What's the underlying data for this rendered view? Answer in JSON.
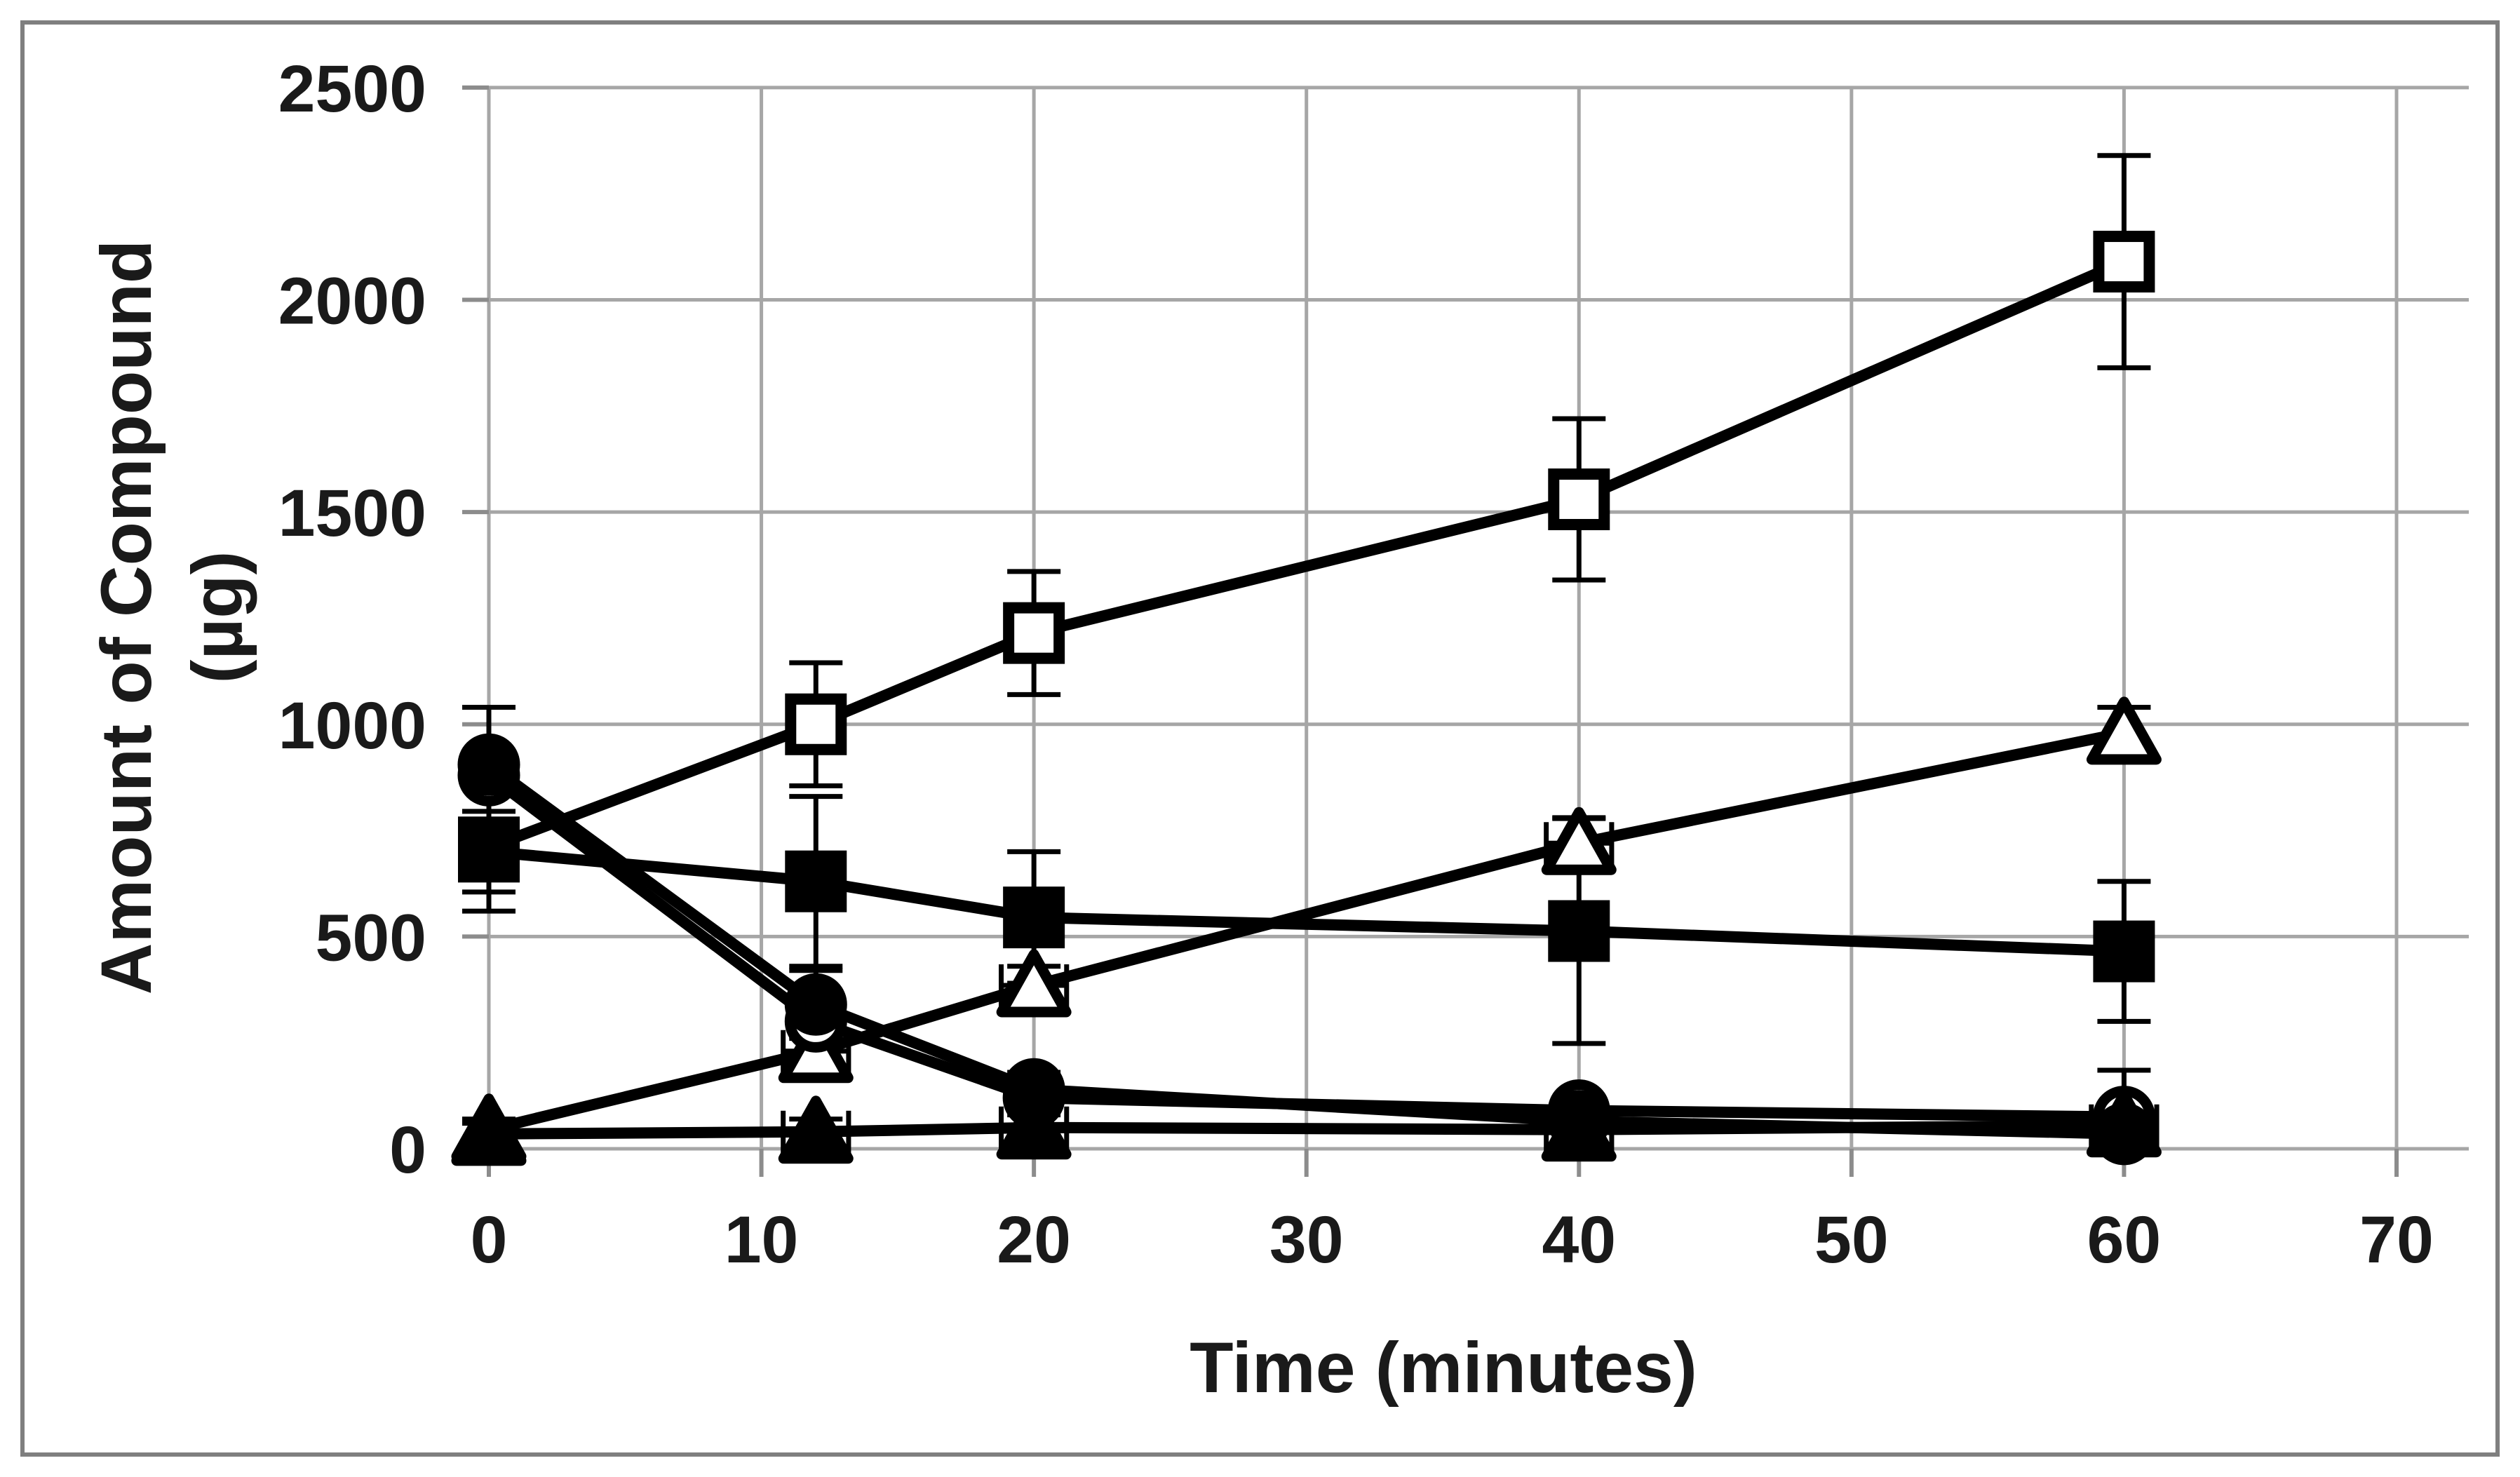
{
  "chart_data": {
    "type": "line",
    "title": "",
    "xlabel": "Time (minutes)",
    "ylabel": "Amount of Compound (µg)",
    "ylabel_line1": "Amount of Compound",
    "ylabel_line2": "(µg)",
    "x": [
      0,
      12,
      20,
      40,
      60
    ],
    "xlim": [
      0,
      70
    ],
    "ylim": [
      0,
      2500
    ],
    "x_ticks": [
      0,
      10,
      20,
      30,
      40,
      50,
      60,
      70
    ],
    "y_ticks": [
      0,
      500,
      1000,
      1500,
      2000,
      2500
    ],
    "grid": true,
    "legend": "none",
    "series": [
      {
        "name": "open-square",
        "marker": "square",
        "fill": "open",
        "values": [
          710,
          1000,
          1215,
          1530,
          2090
        ],
        "err_y": [
          150,
          145,
          145,
          190,
          250
        ],
        "err_x": [
          0,
          0,
          0,
          0,
          0
        ]
      },
      {
        "name": "filled-square",
        "marker": "square",
        "fill": "solid",
        "values": [
          700,
          630,
          545,
          513,
          465
        ],
        "err_y": [
          95,
          200,
          155,
          265,
          165
        ],
        "err_x": [
          0,
          0,
          0,
          0,
          0
        ]
      },
      {
        "name": "open-triangle",
        "marker": "triangle",
        "fill": "open",
        "values": [
          45,
          230,
          385,
          720,
          980
        ],
        "err_y": [
          25,
          35,
          45,
          60,
          60
        ],
        "err_x": [
          0,
          1.2,
          1.2,
          1.2,
          0
        ]
      },
      {
        "name": "open-circle",
        "marker": "circle",
        "fill": "open",
        "values": [
          880,
          300,
          120,
          90,
          75
        ],
        "err_y": [
          0,
          0,
          0,
          0,
          0
        ],
        "err_x": [
          0,
          0,
          0,
          0,
          0
        ]
      },
      {
        "name": "filled-circle",
        "marker": "circle",
        "fill": "solid",
        "values": [
          905,
          340,
          140,
          65,
          35
        ],
        "err_y": [
          135,
          80,
          40,
          30,
          25
        ],
        "err_x": [
          0,
          0,
          0,
          0,
          0
        ]
      },
      {
        "name": "filled-triangle",
        "marker": "triangle",
        "fill": "solid",
        "values": [
          35,
          40,
          50,
          45,
          55
        ],
        "err_y": [
          25,
          30,
          30,
          30,
          130
        ],
        "err_x": [
          0,
          1.2,
          1.2,
          1.2,
          1.2
        ]
      }
    ],
    "colors": {
      "line": "#000000",
      "grid": "#a6a6a6",
      "tick": "#8c8c8c",
      "text": "#1a1a1a",
      "border": "#7f7f7f",
      "background": "#ffffff"
    }
  }
}
